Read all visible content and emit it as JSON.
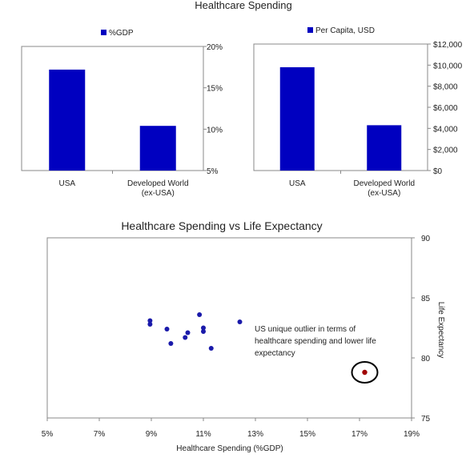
{
  "page_title": "Healthcare Spending",
  "colors": {
    "bar": "#0000c0",
    "scatter_point": "#1a1aaa",
    "outlier_point": "#a00000",
    "axis": "#888888"
  },
  "chart_data": [
    {
      "type": "bar",
      "legend": "%GDP",
      "legend_placement": "top",
      "categories": [
        "USA",
        [
          "Developed World",
          "(ex-USA)"
        ]
      ],
      "values": [
        17.2,
        10.4
      ],
      "ylim": [
        5,
        20
      ],
      "yticks": [
        5,
        10,
        15,
        20
      ],
      "ytick_labels": [
        "5%",
        "10%",
        "15%",
        "20%"
      ],
      "grid": false
    },
    {
      "type": "bar",
      "legend": "Per Capita, USD",
      "legend_placement": "top",
      "categories": [
        "USA",
        [
          "Developed World",
          "(ex-USA)"
        ]
      ],
      "values": [
        9800,
        4300
      ],
      "ylim": [
        0,
        12000
      ],
      "yticks": [
        0,
        2000,
        4000,
        6000,
        8000,
        10000,
        12000
      ],
      "ytick_labels": [
        "$0",
        "$2,000",
        "$4,000",
        "$6,000",
        "$8,000",
        "$10,000",
        "$12,000"
      ],
      "grid": false
    },
    {
      "type": "scatter",
      "title": "Healthcare Spending vs Life Expectancy",
      "xlabel": "Healthcare Spending (%GDP)",
      "ylabel": "Life Expectancy",
      "xlim": [
        5,
        19
      ],
      "ylim": [
        75,
        90
      ],
      "xticks": [
        5,
        7,
        9,
        11,
        13,
        15,
        17,
        19
      ],
      "xtick_labels": [
        "5%",
        "7%",
        "9%",
        "11%",
        "13%",
        "15%",
        "17%",
        "19%"
      ],
      "yticks": [
        75,
        80,
        85,
        90
      ],
      "ytick_labels": [
        "75",
        "80",
        "85",
        "90"
      ],
      "grid": false,
      "points": [
        [
          8.95,
          83.1
        ],
        [
          8.95,
          82.8
        ],
        [
          9.6,
          82.4
        ],
        [
          9.75,
          81.2
        ],
        [
          10.3,
          81.7
        ],
        [
          10.4,
          82.1
        ],
        [
          10.85,
          83.6
        ],
        [
          11.0,
          82.5
        ],
        [
          11.0,
          82.2
        ],
        [
          11.3,
          80.8
        ],
        [
          12.4,
          83.0
        ]
      ],
      "outlier": {
        "x": 17.2,
        "y": 78.8
      },
      "annotation": [
        "US unique outlier in terms of",
        "healthcare spending and lower life",
        "expectancy"
      ]
    }
  ]
}
